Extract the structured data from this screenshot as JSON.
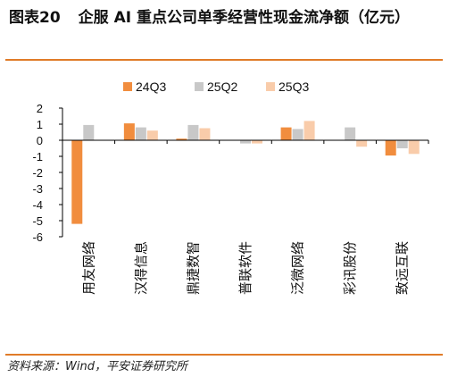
{
  "figure": {
    "number": "图表20",
    "title": "企服 AI 重点公司单季经营性现金流净额（亿元）",
    "source": "资料来源：Wind，平安证券研究所"
  },
  "colors": {
    "24Q3": "#f18d3e",
    "25Q2": "#c8c8c8",
    "25Q3": "#f9ccaa",
    "rule": "#e07b28",
    "axis": "#000000"
  },
  "chart_data": {
    "type": "bar",
    "title": "企服 AI 重点公司单季经营性现金流净额（亿元）",
    "categories": [
      "用友网络",
      "汉得信息",
      "鼎捷数智",
      "普联软件",
      "泛微网络",
      "彩讯股份",
      "致远互联"
    ],
    "series": [
      {
        "name": "24Q3",
        "values": [
          -5.2,
          1.05,
          0.1,
          0.0,
          0.8,
          0.0,
          -0.95
        ]
      },
      {
        "name": "25Q2",
        "values": [
          0.95,
          0.8,
          0.95,
          -0.2,
          0.7,
          0.8,
          -0.5
        ]
      },
      {
        "name": "25Q3",
        "values": [
          0.0,
          0.6,
          0.75,
          -0.2,
          1.2,
          -0.4,
          -0.85
        ]
      }
    ],
    "ylim": [
      -6,
      2
    ],
    "yticks": [
      2,
      1,
      0,
      -1,
      -2,
      -3,
      -4,
      -5,
      -6
    ],
    "xlabel": "",
    "ylabel": "",
    "legend_position": "top-center",
    "grid": false
  }
}
